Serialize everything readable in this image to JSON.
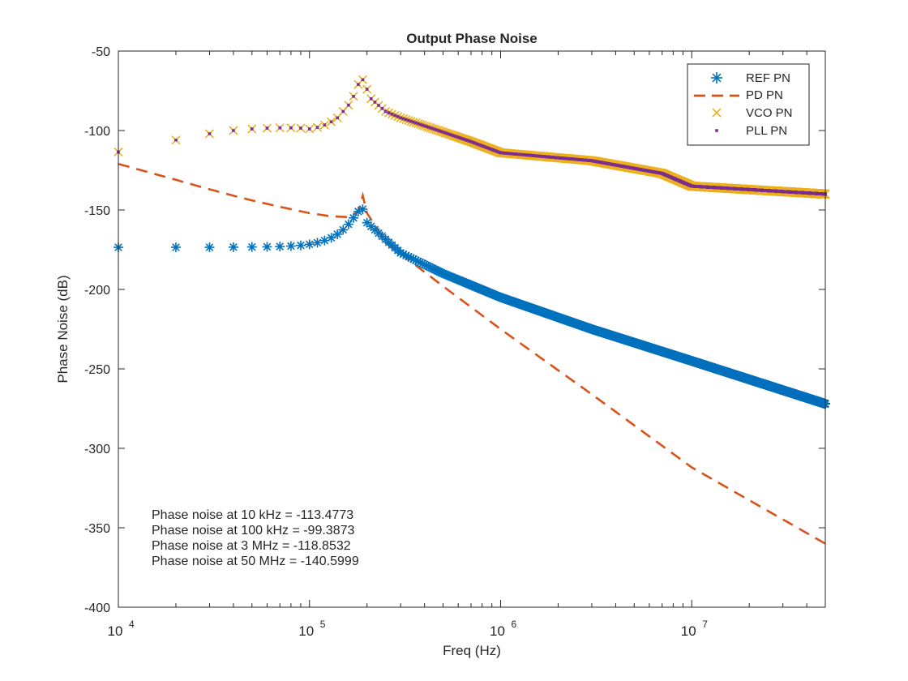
{
  "chart_data": {
    "type": "line",
    "title": "Output Phase Noise",
    "xlabel": "Freq (Hz)",
    "ylabel": "Phase Noise (dB)",
    "x_scale": "log",
    "xlim": [
      10000,
      50000000
    ],
    "ylim": [
      -400,
      -50
    ],
    "x_ticks": [
      {
        "value": 10000,
        "base": "10",
        "exp": "4"
      },
      {
        "value": 100000,
        "base": "10",
        "exp": "5"
      },
      {
        "value": 1000000,
        "base": "10",
        "exp": "6"
      },
      {
        "value": 10000000,
        "base": "10",
        "exp": "7"
      }
    ],
    "y_ticks": [
      {
        "value": -50,
        "label": "-50"
      },
      {
        "value": -100,
        "label": "-100"
      },
      {
        "value": -150,
        "label": "-150"
      },
      {
        "value": -200,
        "label": "-200"
      },
      {
        "value": -250,
        "label": "-250"
      },
      {
        "value": -300,
        "label": "-300"
      },
      {
        "value": -350,
        "label": "-350"
      },
      {
        "value": -400,
        "label": "-400"
      }
    ],
    "grid": false,
    "legend_position": "top-right",
    "series": [
      {
        "name": "REF PN",
        "marker": "asterisk",
        "color": "#0072BD",
        "x": [
          10000,
          20000,
          30000,
          40000,
          50000,
          60000,
          70000,
          80000,
          90000,
          100000,
          110000,
          120000,
          130000,
          140000,
          150000,
          160000,
          170000,
          180000,
          190000,
          200000,
          300000,
          500000,
          1000000,
          3000000,
          10000000,
          50000000
        ],
        "y": [
          -173.5,
          -173.5,
          -173.5,
          -173.4,
          -173.3,
          -173.2,
          -173.0,
          -172.7,
          -172.3,
          -171.6,
          -170.6,
          -169.2,
          -167.5,
          -165.3,
          -162.5,
          -159.0,
          -155.0,
          -151.0,
          -149.5,
          -158.0,
          -177.0,
          -190.0,
          -205.0,
          -225.0,
          -245.0,
          -272.0
        ]
      },
      {
        "name": "PD PN",
        "style": "dashed",
        "color": "#D95319",
        "x": [
          10000,
          20000,
          30000,
          40000,
          50000,
          70000,
          100000,
          130000,
          160000,
          180000,
          190000,
          200000,
          250000,
          300000,
          500000,
          1000000,
          3000000,
          10000000,
          50000000
        ],
        "y": [
          -121,
          -131,
          -137,
          -141,
          -144,
          -148,
          -152,
          -154,
          -154.5,
          -151,
          -141,
          -152,
          -170,
          -177.5,
          -198,
          -225,
          -266,
          -312,
          -360
        ]
      },
      {
        "name": "VCO PN",
        "marker": "x",
        "color": "#EDB120",
        "x": [
          10000,
          20000,
          30000,
          40000,
          50000,
          60000,
          70000,
          80000,
          90000,
          100000,
          110000,
          120000,
          130000,
          140000,
          150000,
          160000,
          170000,
          180000,
          190000,
          200000,
          210000,
          250000,
          300000,
          500000,
          700000,
          1000000,
          3000000,
          7000000,
          10000000,
          50000000
        ],
        "y": [
          -113.5,
          -106,
          -102,
          -100,
          -99,
          -98.5,
          -98.3,
          -98.3,
          -98.5,
          -99,
          -98,
          -96.5,
          -94.5,
          -92,
          -88,
          -84,
          -78.5,
          -71,
          -68,
          -74,
          -80,
          -88,
          -92,
          -101,
          -107,
          -114,
          -119,
          -127,
          -135,
          -140
        ]
      },
      {
        "name": "PLL PN",
        "marker": "dot",
        "color": "#7E2F8E",
        "x": [
          10000,
          20000,
          30000,
          40000,
          50000,
          60000,
          70000,
          80000,
          90000,
          100000,
          110000,
          120000,
          130000,
          140000,
          150000,
          160000,
          170000,
          180000,
          190000,
          200000,
          210000,
          250000,
          300000,
          500000,
          700000,
          1000000,
          3000000,
          7000000,
          10000000,
          50000000
        ],
        "y": [
          -113.5,
          -106,
          -102,
          -100,
          -99,
          -98.5,
          -98.3,
          -98.3,
          -98.5,
          -99,
          -98,
          -96.5,
          -94.5,
          -92,
          -88,
          -84,
          -78.5,
          -71,
          -68,
          -74,
          -80,
          -88,
          -92,
          -101,
          -107,
          -114,
          -119,
          -127,
          -135,
          -140
        ]
      }
    ],
    "annotations": [
      "Phase noise at 10 kHz = -113.4773",
      "Phase noise at 100 kHz = -99.3873",
      "Phase noise at 3 MHz = -118.8532",
      "Phase noise at 50 MHz = -140.5999"
    ]
  }
}
